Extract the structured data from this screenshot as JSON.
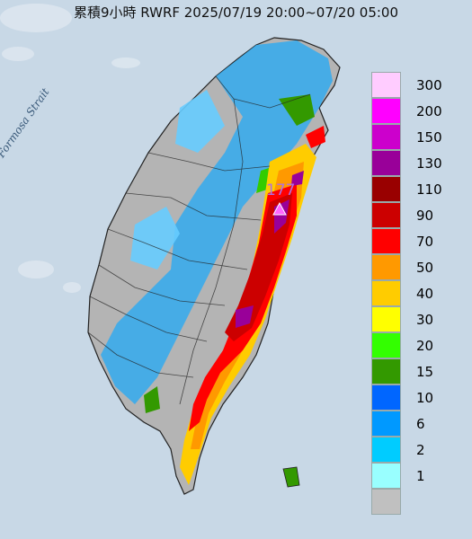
{
  "title": "累積9小時 RWRF 2025/07/19 20:00~07/20 05:00",
  "strait_label": "Formosa Strait",
  "peak_value": "177",
  "colors": {
    "ocean": "#c8d8e6",
    "land_gray": "#b4b4b4"
  },
  "legend": {
    "items": [
      {
        "label": "300",
        "color": "#ffccff"
      },
      {
        "label": "200",
        "color": "#ff00ff"
      },
      {
        "label": "150",
        "color": "#cc00cc"
      },
      {
        "label": "130",
        "color": "#990099"
      },
      {
        "label": "110",
        "color": "#990000"
      },
      {
        "label": "90",
        "color": "#cc0000"
      },
      {
        "label": "70",
        "color": "#ff0000"
      },
      {
        "label": "50",
        "color": "#ff9900"
      },
      {
        "label": "40",
        "color": "#ffcc00"
      },
      {
        "label": "30",
        "color": "#ffff00"
      },
      {
        "label": "20",
        "color": "#33ff00"
      },
      {
        "label": "15",
        "color": "#339900"
      },
      {
        "label": "10",
        "color": "#0066ff"
      },
      {
        "label": "6",
        "color": "#0099ff"
      },
      {
        "label": "2",
        "color": "#00ccff"
      },
      {
        "label": "1",
        "color": "#99ffff"
      },
      {
        "label": "",
        "color": "#c0c0c0"
      }
    ]
  }
}
